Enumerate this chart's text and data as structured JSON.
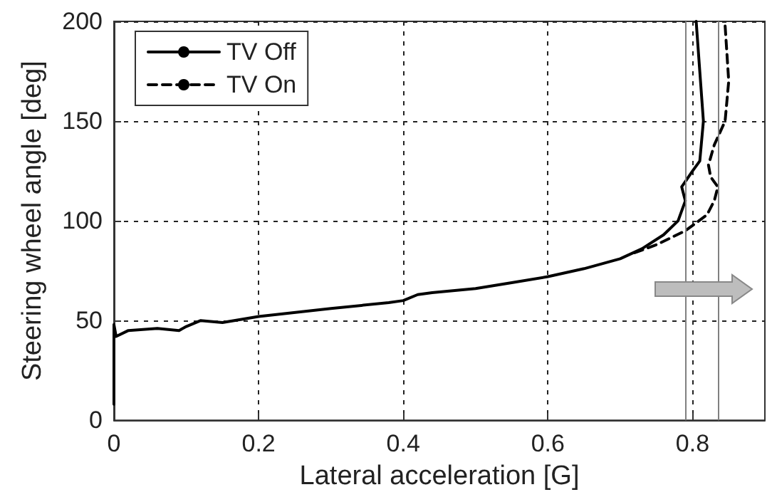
{
  "chart_data": {
    "type": "line",
    "xlabel": "Lateral acceleration [G]",
    "ylabel": "Steering wheel angle [deg]",
    "xlim": [
      0,
      0.9
    ],
    "xticks": [
      0,
      0.2,
      0.4,
      0.6,
      0.8
    ],
    "ylim": [
      0,
      200
    ],
    "yticks": [
      0,
      50,
      100,
      150,
      200
    ],
    "grid": true,
    "legend": "top left",
    "marker": "none",
    "series": [
      {
        "name": "TV Off",
        "color": "#000000",
        "line_style": "solid",
        "x": [
          0,
          0,
          0.003,
          0.02,
          0.06,
          0.09,
          0.1,
          0.12,
          0.15,
          0.2,
          0.3,
          0.38,
          0.4,
          0.42,
          0.44,
          0.5,
          0.55,
          0.6,
          0.65,
          0.7,
          0.73,
          0.76,
          0.78,
          0.79,
          0.785,
          0.8,
          0.81,
          0.815,
          0.81,
          0.805
        ],
        "values": [
          8,
          48,
          42,
          45,
          46,
          45,
          47,
          50,
          49,
          52,
          56,
          59,
          60,
          63,
          64,
          66,
          69,
          72,
          76,
          81,
          86,
          93,
          100,
          110,
          117,
          125,
          130,
          150,
          175,
          200
        ]
      },
      {
        "name": "TV On",
        "color": "#000000",
        "line_style": "dashed",
        "x": [
          0.72,
          0.75,
          0.79,
          0.82,
          0.83,
          0.835,
          0.825,
          0.822,
          0.83,
          0.845,
          0.85,
          0.845
        ],
        "values": [
          84,
          88,
          95,
          103,
          110,
          117,
          122,
          128,
          138,
          150,
          170,
          198
        ]
      }
    ],
    "ref_lines": [
      {
        "axis": "x",
        "value": 0.79,
        "color": "#808080",
        "line_style": "solid"
      },
      {
        "axis": "x",
        "value": 0.835,
        "color": "#808080",
        "line_style": "solid"
      }
    ]
  }
}
